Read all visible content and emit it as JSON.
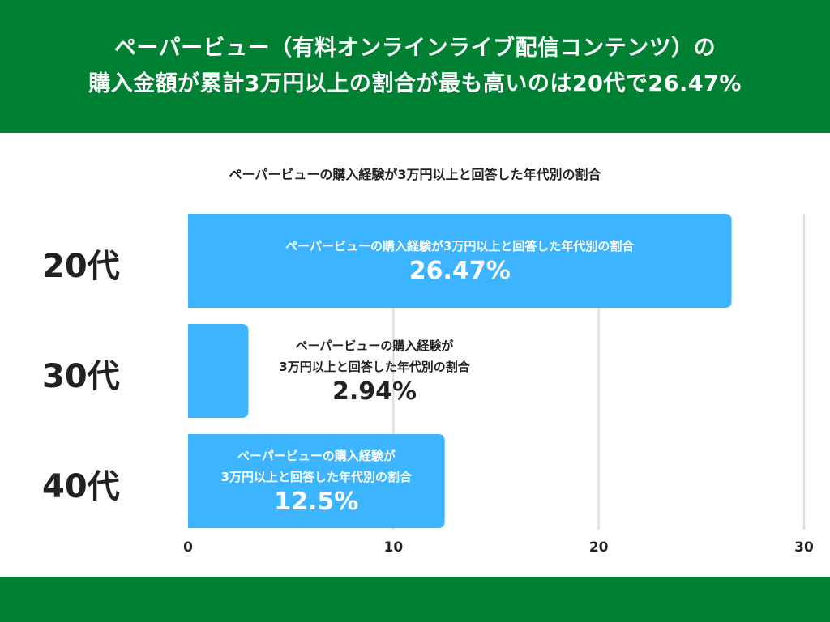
{
  "header": {
    "line1": "ペーパービュー（有料オンラインライブ配信コンテンツ）の",
    "line2": "購入金額が累計3万円以上の割合が最も高いのは20代で26.47%"
  },
  "colors": {
    "header_bg": "#008033",
    "bar": "#3db4ff",
    "grid": "#d9d9d9"
  },
  "chart_data": {
    "type": "bar",
    "orientation": "horizontal",
    "title": "ペーパービューの購入経験が3万円以上と回答した年代別の割合",
    "categories": [
      "20代",
      "30代",
      "40代"
    ],
    "values": [
      26.47,
      2.94,
      12.5
    ],
    "value_labels": [
      "26.47%",
      "2.94%",
      "12.5%"
    ],
    "data_label_desc": [
      [
        "ペーパービューの購入経験が3万円以上と回答した年代別の割合"
      ],
      [
        "ペーパービューの購入経験が",
        "3万円以上と回答した年代別の割合"
      ],
      [
        "ペーパービューの購入経験が",
        "3万円以上と回答した年代別の割合"
      ]
    ],
    "xlim": [
      0,
      30
    ],
    "xticks": [
      "0",
      "10",
      "20",
      "30"
    ],
    "grid": true
  }
}
